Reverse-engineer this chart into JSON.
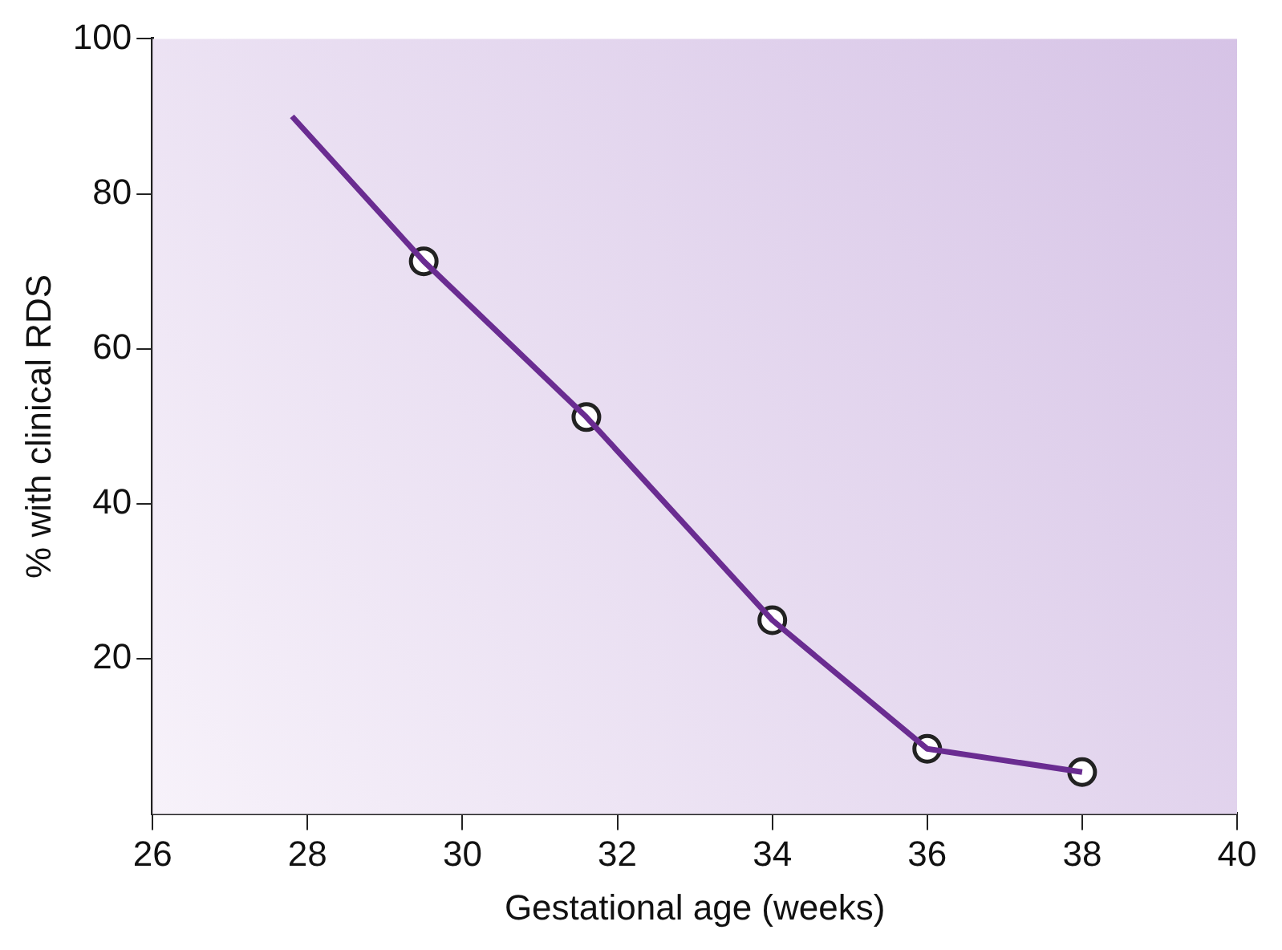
{
  "chart_data": {
    "type": "line",
    "xlabel": "Gestational age (weeks)",
    "ylabel": "% with clinical RDS",
    "series": [
      {
        "type": "line",
        "color": "#6a2c91",
        "marker": "none",
        "x": [
          27.8,
          29.5,
          31.6,
          34,
          36,
          38
        ],
        "values": [
          90,
          71.3,
          51.2,
          25,
          8.4,
          5.4
        ]
      },
      {
        "type": "scatter",
        "color": "#ffffff",
        "marker": "circle",
        "x": [
          29.5,
          31.6,
          34,
          36,
          38
        ],
        "values": [
          71.3,
          51.2,
          25,
          8.4,
          5.4
        ]
      }
    ],
    "xlim": [
      26,
      40
    ],
    "xticks": [
      26,
      28,
      30,
      32,
      34,
      36,
      38,
      40
    ],
    "ylim": [
      0,
      100
    ],
    "yticks": [
      20,
      40,
      60,
      80,
      100
    ],
    "grid": false,
    "legend": false
  }
}
